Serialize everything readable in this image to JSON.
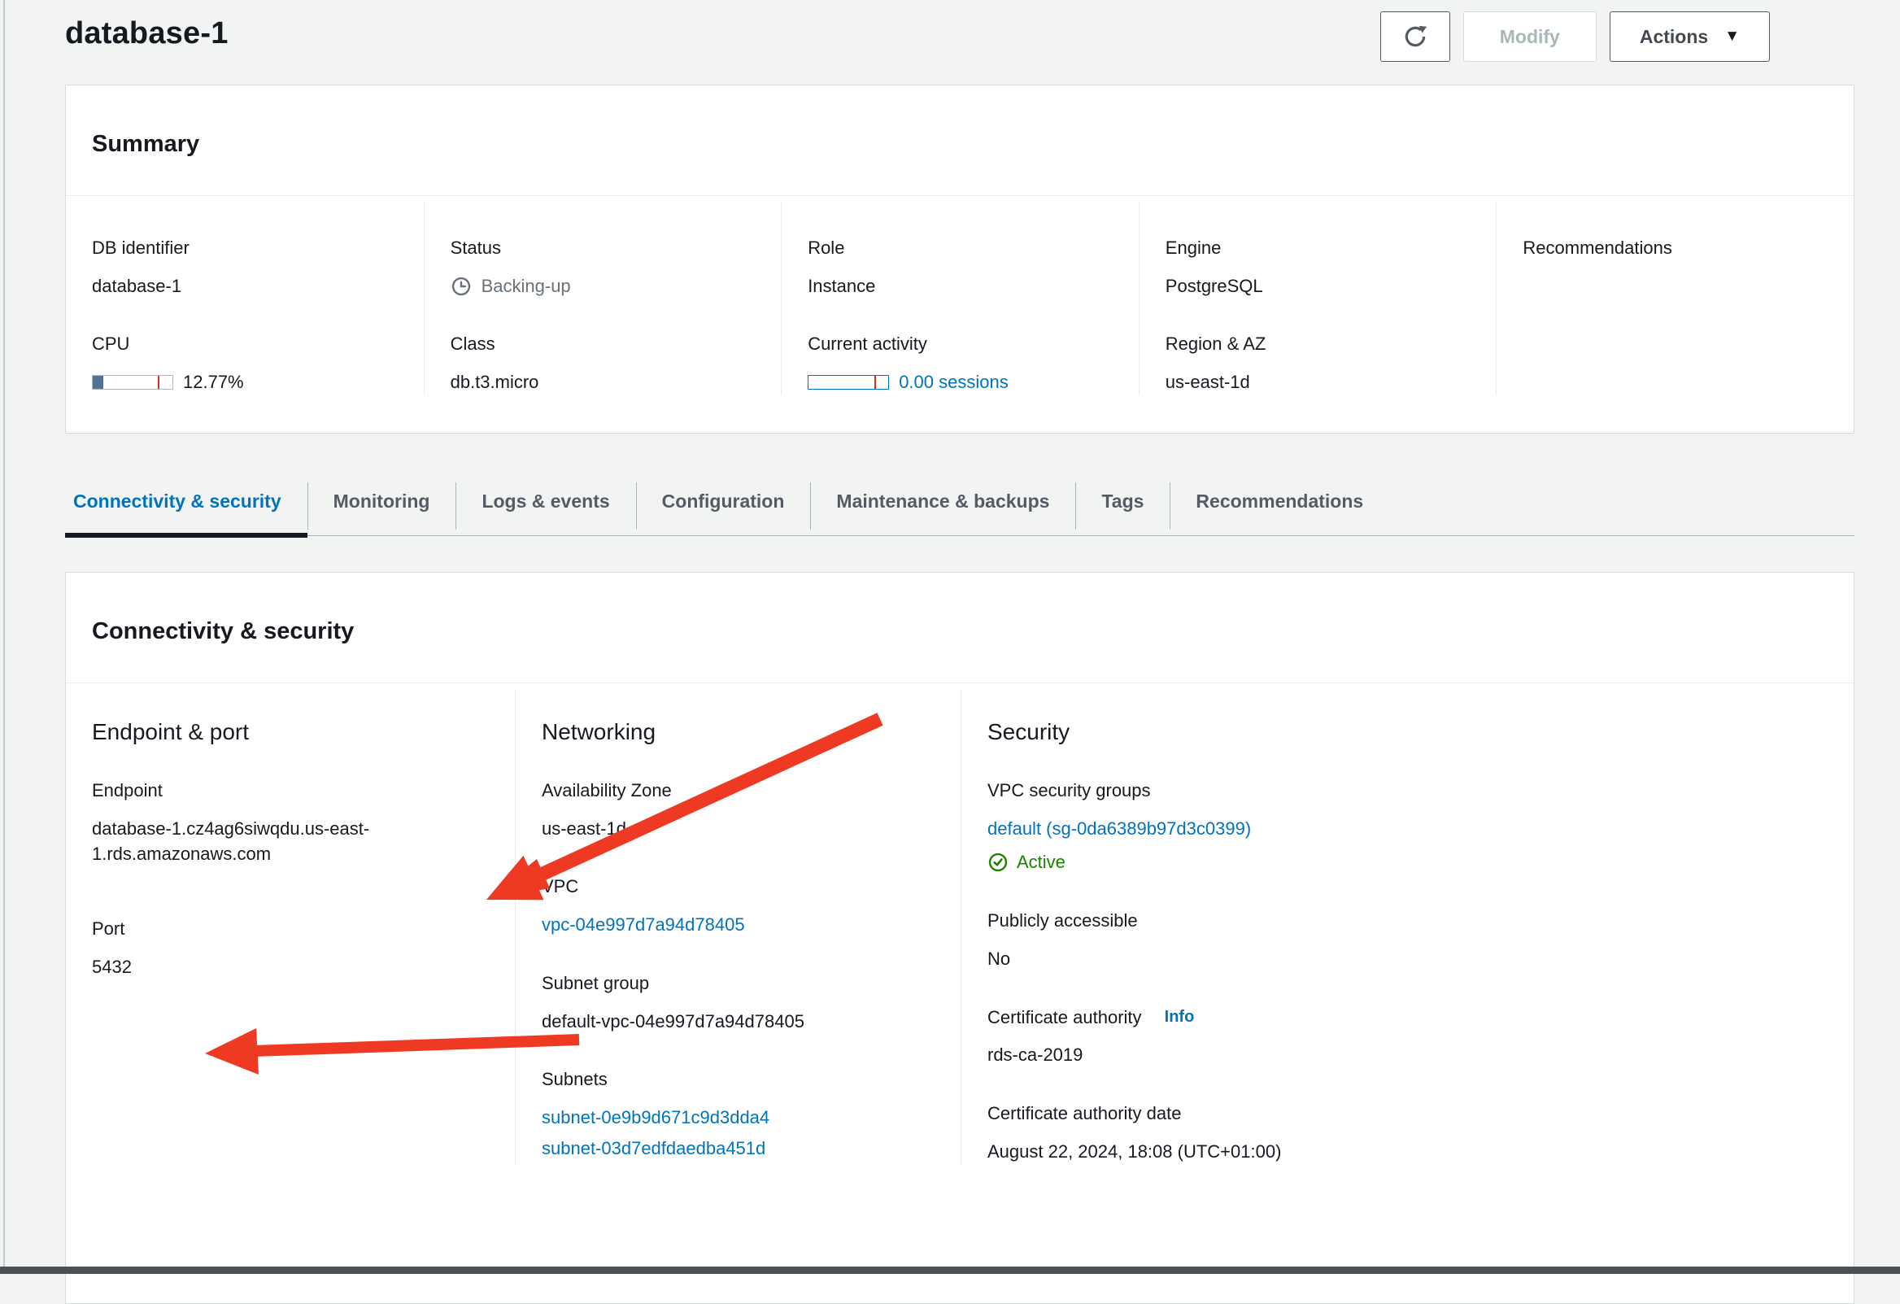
{
  "header": {
    "title": "database-1",
    "modify": "Modify",
    "actions": "Actions",
    "actions_caret": "▼"
  },
  "summary": {
    "title": "Summary",
    "db_identifier_label": "DB identifier",
    "db_identifier": "database-1",
    "cpu_label": "CPU",
    "cpu_value": "12.77%",
    "cpu_percent": 12.77,
    "status_label": "Status",
    "status": "Backing-up",
    "class_label": "Class",
    "class_value": "db.t3.micro",
    "role_label": "Role",
    "role": "Instance",
    "current_activity_label": "Current activity",
    "current_activity": "0.00 sessions",
    "current_activity_percent": 0,
    "engine_label": "Engine",
    "engine": "PostgreSQL",
    "region_az_label": "Region & AZ",
    "region_az": "us-east-1d",
    "recommendations_label": "Recommendations"
  },
  "tabs": [
    {
      "label": "Connectivity & security",
      "active": true
    },
    {
      "label": "Monitoring",
      "active": false
    },
    {
      "label": "Logs & events",
      "active": false
    },
    {
      "label": "Configuration",
      "active": false
    },
    {
      "label": "Maintenance & backups",
      "active": false
    },
    {
      "label": "Tags",
      "active": false
    },
    {
      "label": "Recommendations",
      "active": false
    }
  ],
  "connectivity": {
    "title": "Connectivity & security",
    "endpoint_port": {
      "heading": "Endpoint & port",
      "endpoint_label": "Endpoint",
      "endpoint": "database-1.cz4ag6siwqdu.us-east-1.rds.amazonaws.com",
      "port_label": "Port",
      "port": "5432"
    },
    "networking": {
      "heading": "Networking",
      "az_label": "Availability Zone",
      "az": "us-east-1d",
      "vpc_label": "VPC",
      "vpc": "vpc-04e997d7a94d78405",
      "subnet_group_label": "Subnet group",
      "subnet_group": "default-vpc-04e997d7a94d78405",
      "subnets_label": "Subnets",
      "subnets": [
        "subnet-0e9b9d671c9d3dda4",
        "subnet-03d7edfdaedba451d"
      ]
    },
    "security": {
      "heading": "Security",
      "vpc_sg_label": "VPC security groups",
      "vpc_sg": "default (sg-0da6389b97d3c0399)",
      "sg_status": "Active",
      "public_label": "Publicly accessible",
      "public_value": "No",
      "ca_label": "Certificate authority",
      "ca_info": "Info",
      "ca_value": "rds-ca-2019",
      "ca_date_label": "Certificate authority date",
      "ca_date": "August 22, 2024, 18:08 (UTC+01:00)"
    }
  },
  "icons": {
    "refresh": "refresh-icon",
    "clock": "clock-pending-icon",
    "check_circle": "check-circle-icon",
    "caret_down": "caret-down-icon"
  },
  "colors": {
    "link_blue": "#0073bb",
    "status_gray": "#687078",
    "success_green": "#1d8102",
    "cpu_bar_fill": "#4e7396",
    "threshold_red": "#d13212",
    "annotation_arrow_red": "#ee3a23",
    "active_tab_underline": "#16191f",
    "panel_border": "#d5dbdb",
    "page_background": "#f2f3f3"
  }
}
